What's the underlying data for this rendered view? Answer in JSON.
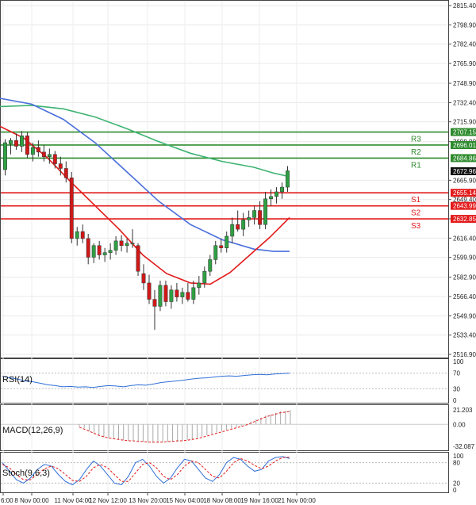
{
  "chart_data": {
    "type": "candlestick",
    "main": {
      "yticks": [
        "2815.40",
        "2798.90",
        "2782.40",
        "2765.90",
        "2748.90",
        "2732.40",
        "2715.90",
        "2698.90",
        "2665.90",
        "2649.40",
        "2632.90",
        "2616.40",
        "2599.90",
        "2582.90",
        "2566.40",
        "2549.90",
        "2533.40",
        "2516.90"
      ],
      "ylim": [
        2510,
        2818
      ],
      "last_price": "2672.96",
      "xticks": [
        "6:00",
        "8 Nov 00:00",
        "11 Nov 04:00",
        "12 Nov 12:00",
        "13 Nov 20:00",
        "15 Nov 04:00",
        "18 Nov 08:00",
        "19 Nov 16:00",
        "21 Nov 00:00"
      ],
      "levels": [
        {
          "label": "R3",
          "value": 2707.15,
          "value_text": "2707.15",
          "color": "#2e8b2e"
        },
        {
          "label": "R2",
          "value": 2696.01,
          "value_text": "2696.01",
          "color": "#2e8b2e"
        },
        {
          "label": "R1",
          "value": 2684.86,
          "value_text": "2684.86",
          "color": "#2e8b2e"
        },
        {
          "label": "S1",
          "value": 2655.14,
          "value_text": "2655.14",
          "color": "#e31a1a"
        },
        {
          "label": "S2",
          "value": 2643.99,
          "value_text": "2643.99",
          "color": "#e31a1a"
        },
        {
          "label": "S3",
          "value": 2632.85,
          "value_text": "2632.85",
          "color": "#e31a1a"
        }
      ],
      "candles": [
        [
          2675,
          2701,
          2670,
          2698
        ],
        [
          2697,
          2702,
          2688,
          2700
        ],
        [
          2700,
          2706,
          2692,
          2695
        ],
        [
          2695,
          2708,
          2690,
          2704
        ],
        [
          2704,
          2707,
          2685,
          2688
        ],
        [
          2688,
          2698,
          2682,
          2694
        ],
        [
          2694,
          2700,
          2686,
          2690
        ],
        [
          2690,
          2696,
          2682,
          2686
        ],
        [
          2686,
          2693,
          2680,
          2688
        ],
        [
          2688,
          2691,
          2676,
          2680
        ],
        [
          2680,
          2686,
          2670,
          2676
        ],
        [
          2676,
          2682,
          2664,
          2668
        ],
        [
          2668,
          2673,
          2612,
          2616
        ],
        [
          2616,
          2626,
          2610,
          2622
        ],
        [
          2622,
          2628,
          2612,
          2616
        ],
        [
          2616,
          2620,
          2594,
          2600
        ],
        [
          2600,
          2612,
          2595,
          2610
        ],
        [
          2610,
          2614,
          2598,
          2602
        ],
        [
          2602,
          2608,
          2596,
          2604
        ],
        [
          2604,
          2612,
          2598,
          2606
        ],
        [
          2606,
          2618,
          2602,
          2614
        ],
        [
          2614,
          2619,
          2605,
          2610
        ],
        [
          2610,
          2616,
          2604,
          2612
        ],
        [
          2612,
          2624,
          2608,
          2612
        ],
        [
          2610,
          2612,
          2584,
          2588
        ],
        [
          2586,
          2594,
          2572,
          2578
        ],
        [
          2578,
          2585,
          2560,
          2564
        ],
        [
          2564,
          2572,
          2538,
          2558
        ],
        [
          2558,
          2580,
          2554,
          2576
        ],
        [
          2576,
          2580,
          2558,
          2562
        ],
        [
          2562,
          2576,
          2556,
          2572
        ],
        [
          2572,
          2578,
          2562,
          2566
        ],
        [
          2566,
          2574,
          2560,
          2570
        ],
        [
          2570,
          2578,
          2562,
          2564
        ],
        [
          2564,
          2580,
          2560,
          2574
        ],
        [
          2574,
          2584,
          2568,
          2578
        ],
        [
          2578,
          2592,
          2574,
          2588
        ],
        [
          2588,
          2602,
          2584,
          2598
        ],
        [
          2598,
          2614,
          2594,
          2610
        ],
        [
          2610,
          2616,
          2604,
          2608
        ],
        [
          2608,
          2622,
          2604,
          2618
        ],
        [
          2618,
          2634,
          2612,
          2628
        ],
        [
          2628,
          2640,
          2622,
          2624
        ],
        [
          2624,
          2638,
          2618,
          2632
        ],
        [
          2632,
          2640,
          2626,
          2634
        ],
        [
          2634,
          2644,
          2628,
          2640
        ],
        [
          2640,
          2648,
          2624,
          2628
        ],
        [
          2628,
          2656,
          2624,
          2650
        ],
        [
          2650,
          2658,
          2644,
          2652
        ],
        [
          2652,
          2660,
          2646,
          2656
        ],
        [
          2656,
          2664,
          2650,
          2660
        ],
        [
          2660,
          2678,
          2656,
          2674
        ]
      ],
      "ma_blue": [
        [
          0,
          2736
        ],
        [
          40,
          2731
        ],
        [
          80,
          2718
        ],
        [
          120,
          2698
        ],
        [
          160,
          2673
        ],
        [
          200,
          2648
        ],
        [
          240,
          2628
        ],
        [
          280,
          2615
        ],
        [
          320,
          2607
        ],
        [
          345,
          2605
        ],
        [
          365,
          2605
        ]
      ],
      "ma_green": [
        [
          0,
          2729
        ],
        [
          40,
          2730
        ],
        [
          80,
          2727
        ],
        [
          120,
          2720
        ],
        [
          160,
          2710
        ],
        [
          200,
          2699
        ],
        [
          240,
          2689
        ],
        [
          280,
          2682
        ],
        [
          320,
          2677
        ],
        [
          345,
          2672
        ],
        [
          365,
          2669
        ]
      ],
      "ma_red": [
        [
          0,
          2712
        ],
        [
          30,
          2702
        ],
        [
          60,
          2685
        ],
        [
          90,
          2664
        ],
        [
          120,
          2644
        ],
        [
          150,
          2624
        ],
        [
          180,
          2602
        ],
        [
          210,
          2586
        ],
        [
          240,
          2578
        ],
        [
          265,
          2577
        ],
        [
          290,
          2587
        ],
        [
          320,
          2605
        ],
        [
          340,
          2617
        ],
        [
          365,
          2634
        ]
      ]
    },
    "rsi": {
      "label": "RSI(14)",
      "yticks": [
        "100",
        "70",
        "30",
        "0"
      ],
      "values": [
        62,
        58,
        55,
        50,
        48,
        44,
        40,
        38,
        35,
        36,
        34,
        35,
        33,
        36,
        38,
        37,
        35,
        38,
        40,
        39,
        42,
        46,
        48,
        50,
        52,
        55,
        57,
        58,
        60,
        62,
        63,
        62,
        64,
        66,
        67,
        66,
        68,
        69,
        70
      ]
    },
    "macd": {
      "label": "MACD(12,26,9)",
      "yticks": [
        "21.203",
        "0.00",
        "-32.087"
      ],
      "hist": [
        -3,
        -6,
        -10,
        -14,
        -17,
        -19,
        -20,
        -21,
        -22,
        -23,
        -24,
        -24,
        -25,
        -26,
        -26,
        -27,
        -27,
        -26,
        -26,
        -25,
        -25,
        -24,
        -23,
        -22,
        -20,
        -18,
        -16,
        -14,
        -12,
        -10,
        -8,
        -6,
        -4,
        -2,
        1,
        4,
        7,
        10,
        13,
        15,
        17,
        19,
        20,
        21
      ],
      "signal": [
        -4,
        -7,
        -10,
        -13,
        -16,
        -18,
        -20,
        -21,
        -22,
        -23,
        -24,
        -24,
        -25,
        -25,
        -26,
        -26,
        -26,
        -26,
        -25,
        -25,
        -24,
        -24,
        -23,
        -22,
        -21,
        -19,
        -17,
        -15,
        -13,
        -11,
        -9,
        -7,
        -5,
        -3,
        -1,
        2,
        5,
        8,
        11,
        13,
        15,
        17,
        18,
        19
      ]
    },
    "stoch": {
      "label": "Stoch(9,6,3)",
      "yticks": [
        "100",
        "80",
        "20",
        "0"
      ],
      "k": [
        80,
        55,
        30,
        20,
        35,
        60,
        75,
        70,
        45,
        25,
        15,
        30,
        60,
        85,
        70,
        45,
        20,
        15,
        40,
        80,
        90,
        70,
        40,
        20,
        35,
        65,
        90,
        85,
        60,
        35,
        25,
        45,
        80,
        95,
        90,
        70,
        55,
        60,
        85,
        95,
        98,
        92
      ],
      "d": [
        75,
        65,
        45,
        30,
        30,
        45,
        62,
        70,
        62,
        45,
        28,
        25,
        40,
        65,
        75,
        65,
        45,
        25,
        25,
        50,
        75,
        80,
        65,
        40,
        30,
        45,
        70,
        85,
        80,
        60,
        40,
        35,
        55,
        80,
        92,
        85,
        72,
        62,
        70,
        85,
        95,
        96
      ]
    }
  }
}
